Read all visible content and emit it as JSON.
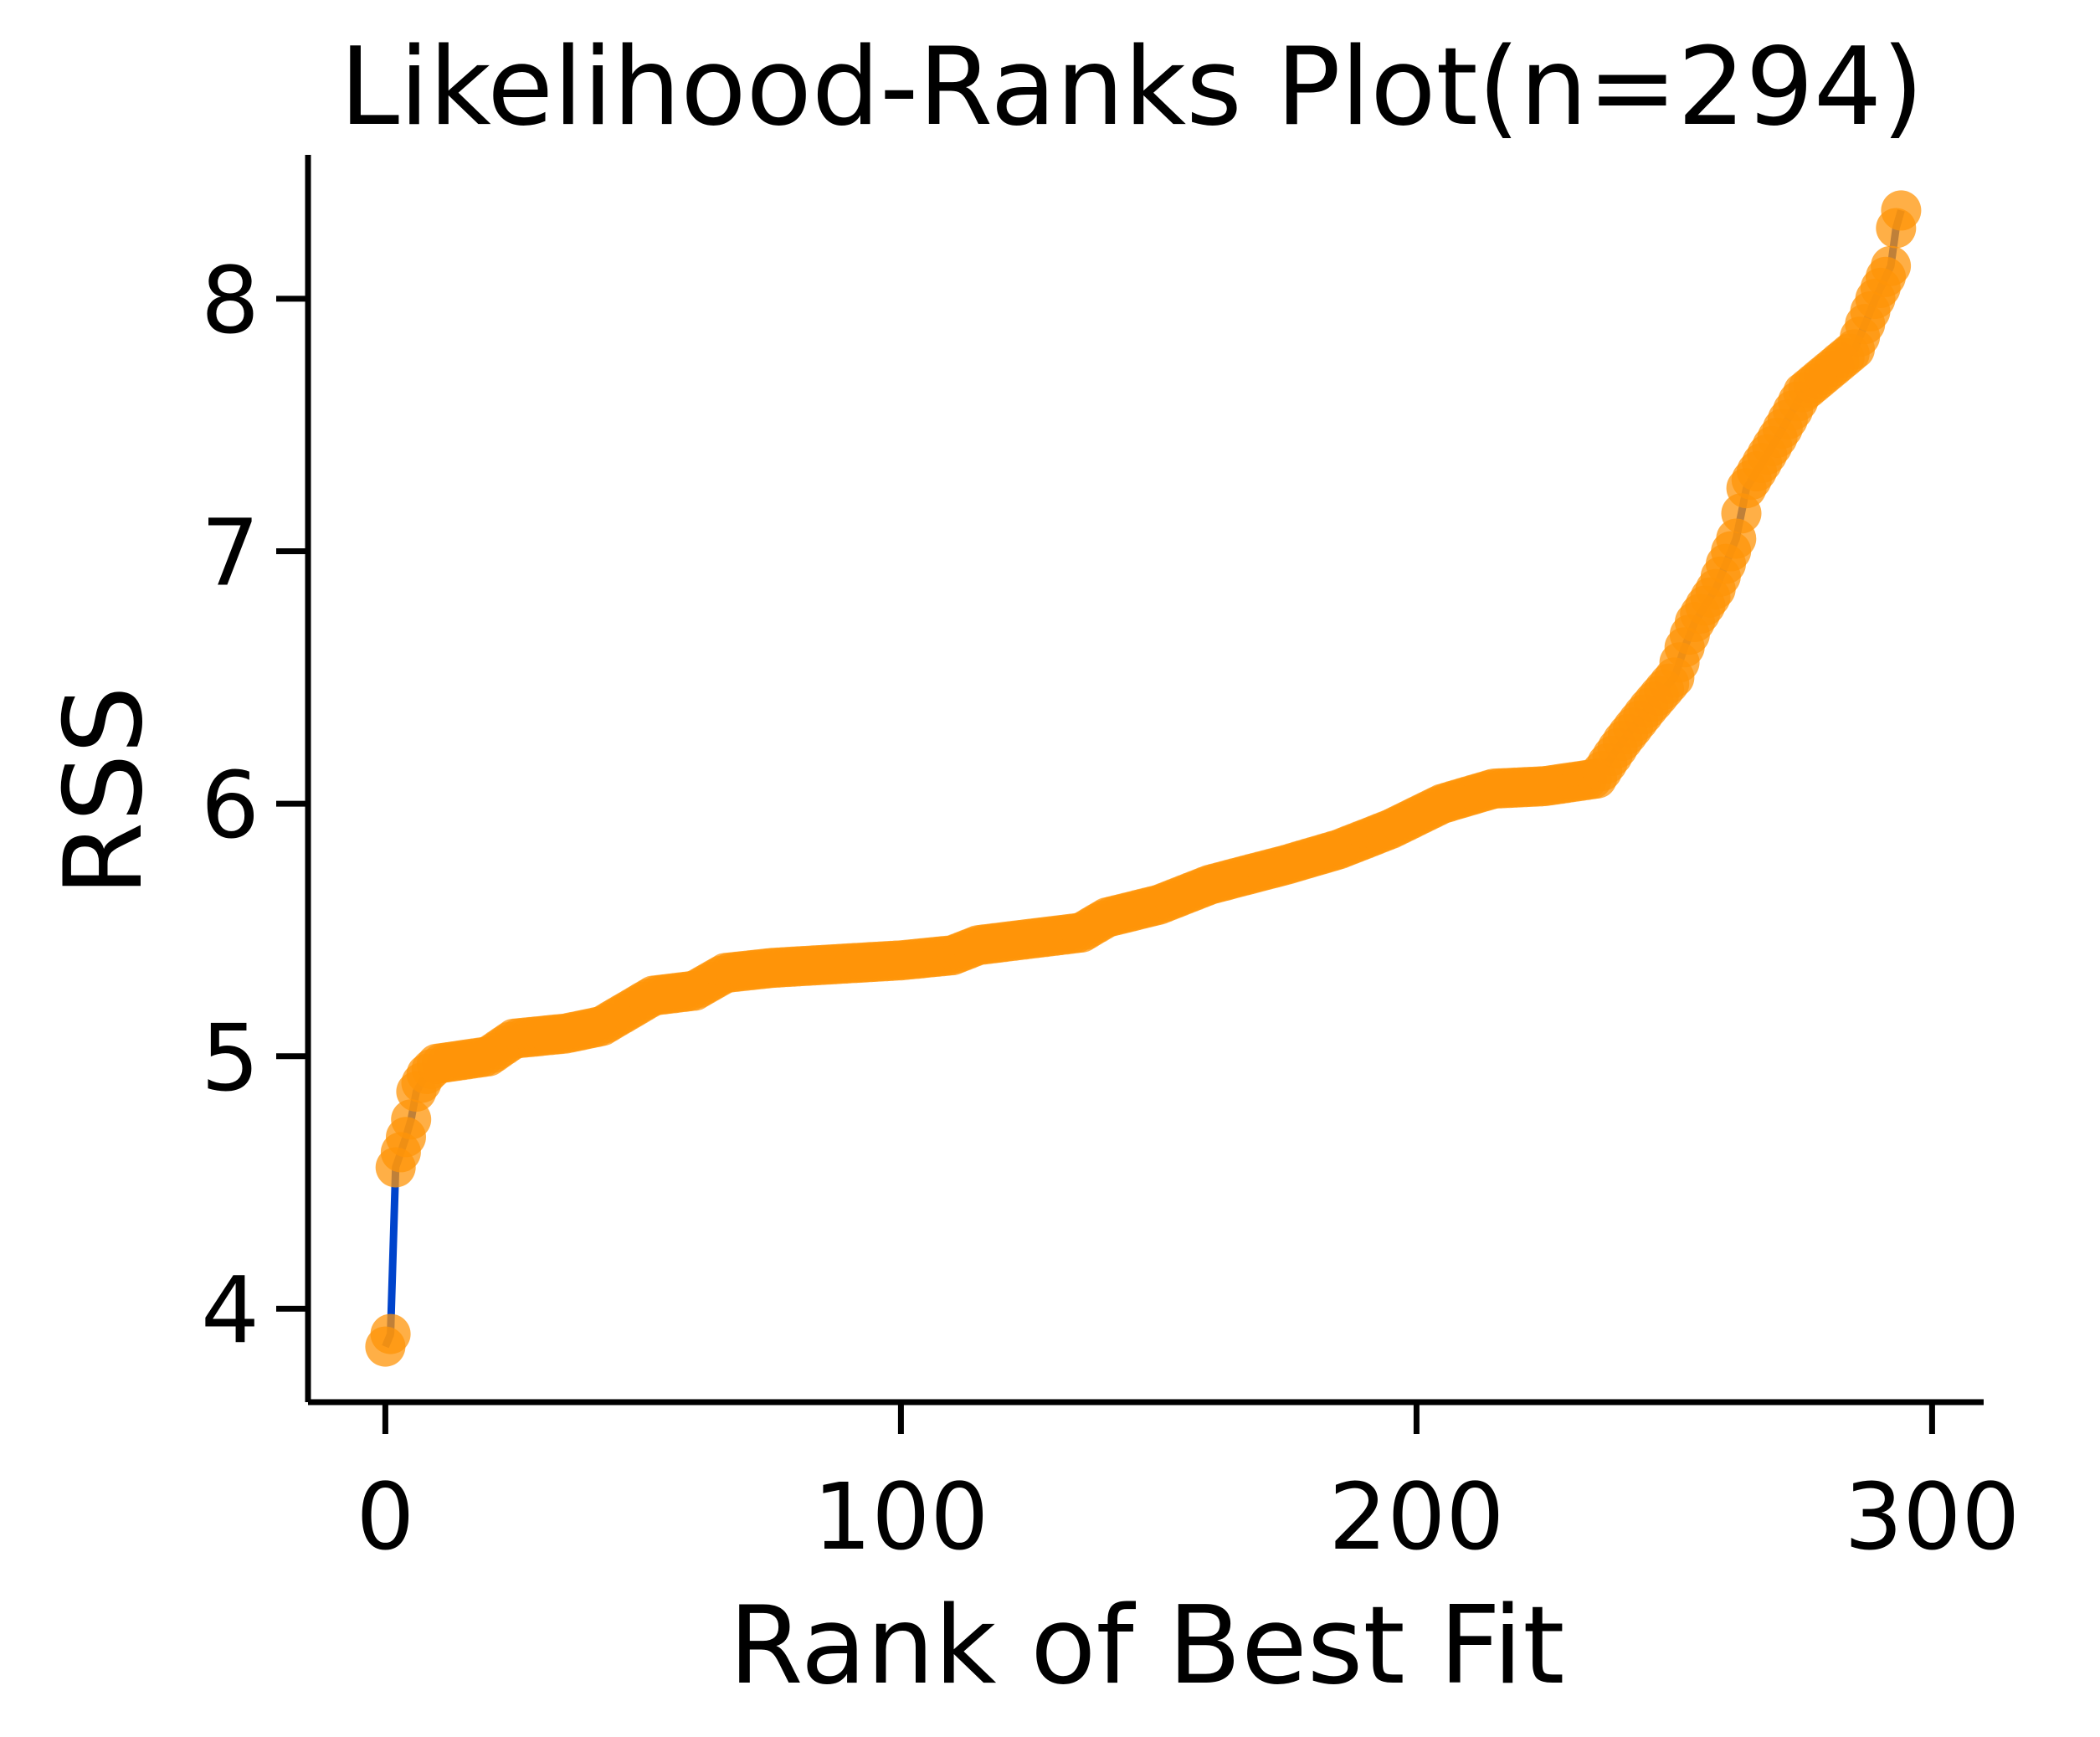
{
  "chart_data": {
    "type": "line",
    "title": "Likelihood-Ranks Plot(n=294)",
    "xlabel": "Rank of Best Fit",
    "ylabel": "RSS",
    "xlim": [
      -15,
      310
    ],
    "ylim": [
      3.63,
      8.57
    ],
    "xticks": [
      0,
      100,
      200,
      300
    ],
    "yticks": [
      4,
      5,
      6,
      7,
      8
    ],
    "grid": false,
    "legend": "none",
    "colors": {
      "line": "#0044cc",
      "markers": "#ff9408",
      "axes": "#000000"
    },
    "n_points": 294,
    "control_points": [
      [
        0,
        3.85
      ],
      [
        1,
        3.9
      ],
      [
        2,
        4.56
      ],
      [
        3,
        4.62
      ],
      [
        4,
        4.68
      ],
      [
        5,
        4.75
      ],
      [
        6,
        4.86
      ],
      [
        8,
        4.93
      ],
      [
        10,
        4.97
      ],
      [
        20,
        5.0
      ],
      [
        25,
        5.07
      ],
      [
        35,
        5.09
      ],
      [
        42,
        5.12
      ],
      [
        47,
        5.18
      ],
      [
        52,
        5.24
      ],
      [
        60,
        5.26
      ],
      [
        66,
        5.33
      ],
      [
        75,
        5.35
      ],
      [
        100,
        5.38
      ],
      [
        110,
        5.4
      ],
      [
        115,
        5.44
      ],
      [
        135,
        5.49
      ],
      [
        140,
        5.55
      ],
      [
        150,
        5.6
      ],
      [
        160,
        5.68
      ],
      [
        175,
        5.76
      ],
      [
        185,
        5.82
      ],
      [
        195,
        5.9
      ],
      [
        205,
        6.0
      ],
      [
        215,
        6.06
      ],
      [
        225,
        6.07
      ],
      [
        235,
        6.1
      ],
      [
        240,
        6.25
      ],
      [
        245,
        6.38
      ],
      [
        250,
        6.5
      ],
      [
        252,
        6.62
      ],
      [
        254,
        6.72
      ],
      [
        258,
        6.85
      ],
      [
        262,
        7.05
      ],
      [
        264,
        7.25
      ],
      [
        270,
        7.45
      ],
      [
        275,
        7.63
      ],
      [
        285,
        7.8
      ],
      [
        289,
        8.0
      ],
      [
        292,
        8.13
      ],
      [
        293,
        8.28
      ],
      [
        294,
        8.35
      ]
    ]
  }
}
